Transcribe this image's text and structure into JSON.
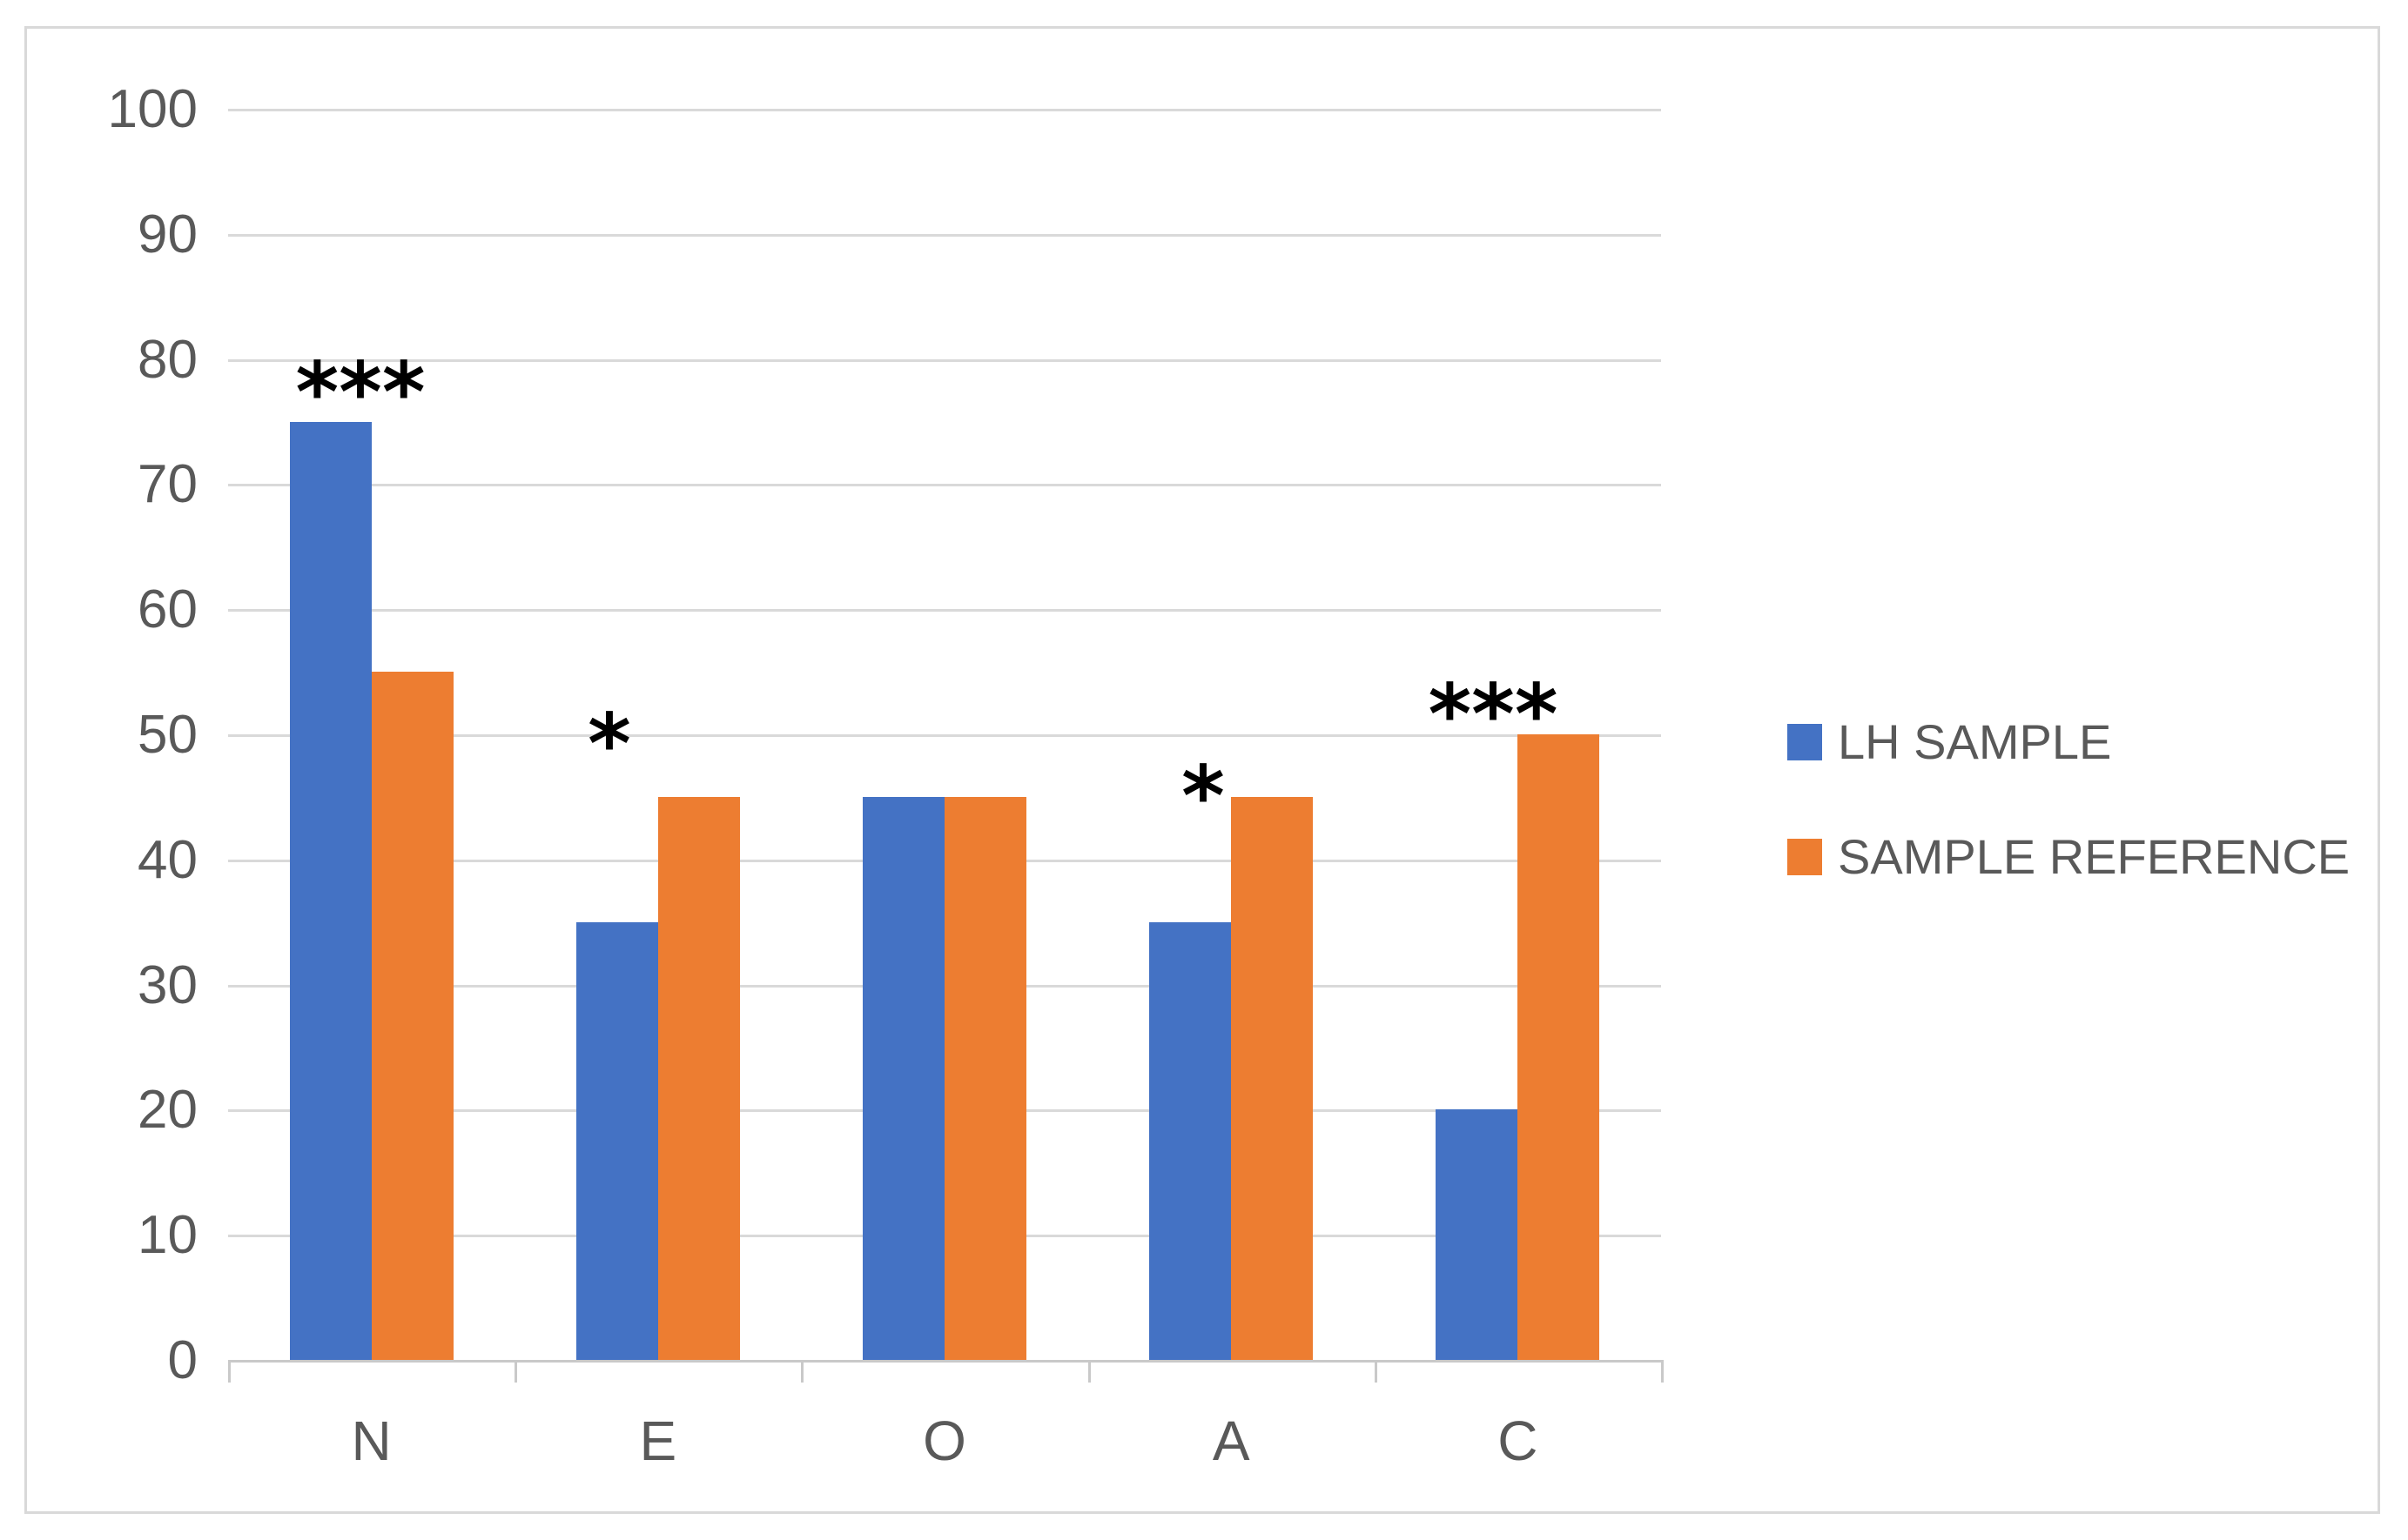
{
  "chart_data": {
    "type": "bar",
    "title": "",
    "xlabel": "",
    "ylabel": "",
    "categories": [
      "N",
      "E",
      "O",
      "A",
      "C"
    ],
    "series": [
      {
        "name": "LH SAMPLE",
        "color": "#4472C4",
        "values": [
          75,
          35,
          45,
          35,
          20
        ]
      },
      {
        "name": "SAMPLE REFERENCE",
        "color": "#ED7D31",
        "values": [
          55,
          45,
          45,
          45,
          50
        ]
      }
    ],
    "ylim": [
      0,
      100
    ],
    "ytick_step": 10,
    "grid": true,
    "gridline_color": "#d9d9d9",
    "axis_color": "#c9c9c9",
    "label_color": "#595959",
    "legend_position": "right",
    "annotations": [
      {
        "category": "N",
        "text": "***",
        "x": 414,
        "y": 436
      },
      {
        "category": "E",
        "text": "*",
        "x": 700,
        "y": 840
      },
      {
        "category": "A",
        "text": "*",
        "x": 1382,
        "y": 900
      },
      {
        "category": "C",
        "text": "***",
        "x": 1715,
        "y": 806
      }
    ]
  }
}
